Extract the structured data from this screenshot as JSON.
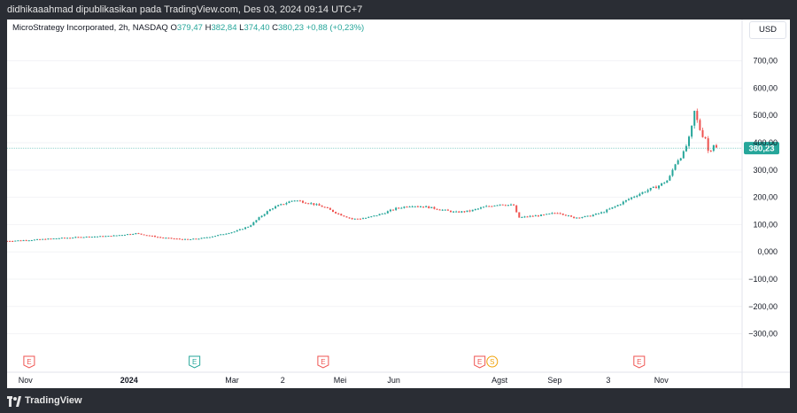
{
  "header": {
    "publish_line": "didhikaaahmad dipublikasikan pada TradingView.com, Des 03, 2024 09:14 UTC+7"
  },
  "legend": {
    "symbol": "MicroStrategy Incorporated, 2h, NASDAQ",
    "o_label": "O",
    "o_value": "379,47",
    "h_label": "H",
    "h_value": "382,84",
    "l_label": "L",
    "l_value": "374,40",
    "c_label": "C",
    "c_value": "380,23",
    "change": "+0,88 (+0,23%)"
  },
  "currency": "USD",
  "footer": {
    "brand": "TradingView"
  },
  "colors": {
    "up": "#26a69a",
    "down": "#ef5350",
    "earnings": "#ef5350",
    "earnings_future": "#26a69a",
    "dividend": "#f0a30a"
  },
  "chart_data": {
    "type": "candlestick",
    "ylim": [
      -350,
      780
    ],
    "y_ticks": [
      700,
      600,
      500,
      400,
      300,
      200,
      100,
      0,
      -100,
      -200,
      -300
    ],
    "y_tick_labels": [
      "700,00",
      "600,00",
      "500,00",
      "400,00",
      "300,00",
      "200,00",
      "100,00",
      "0,000",
      "−100,00",
      "−200,00",
      "−300,00"
    ],
    "x_labels": [
      "Nov",
      "2024",
      "Mar",
      "2",
      "Mei",
      "Jun",
      "Agst",
      "Sep",
      "3",
      "Nov"
    ],
    "last_price": 380.23,
    "last_price_label": "380,23",
    "series": {
      "x": [
        0,
        0.035,
        0.07,
        0.105,
        0.14,
        0.175,
        0.21,
        0.245,
        0.265,
        0.285,
        0.31,
        0.33,
        0.345,
        0.36,
        0.375,
        0.39,
        0.41,
        0.43,
        0.45,
        0.47,
        0.49,
        0.51,
        0.53,
        0.55,
        0.57,
        0.59,
        0.61,
        0.63,
        0.65,
        0.67,
        0.69,
        0.695,
        0.71,
        0.73,
        0.75,
        0.77,
        0.79,
        0.81,
        0.83,
        0.85,
        0.87,
        0.885,
        0.9,
        0.91,
        0.92,
        0.93,
        0.935,
        0.94,
        0.945,
        0.95,
        0.955,
        0.96,
        0.965
      ],
      "close": [
        40,
        44,
        50,
        55,
        58,
        68,
        52,
        45,
        50,
        60,
        75,
        95,
        130,
        160,
        175,
        190,
        180,
        165,
        140,
        120,
        125,
        140,
        160,
        170,
        165,
        155,
        145,
        150,
        165,
        175,
        170,
        125,
        130,
        135,
        145,
        125,
        130,
        145,
        170,
        200,
        225,
        240,
        265,
        330,
        360,
        430,
        515,
        470,
        430,
        420,
        355,
        400,
        380
      ]
    },
    "events": [
      {
        "x": 0.03,
        "label": "E",
        "kind": "earnings"
      },
      {
        "x": 0.255,
        "label": "E",
        "kind": "earnings-future"
      },
      {
        "x": 0.43,
        "label": "E",
        "kind": "earnings"
      },
      {
        "x": 0.643,
        "label": "E",
        "kind": "earnings"
      },
      {
        "x": 0.66,
        "label": "S",
        "kind": "dividend"
      },
      {
        "x": 0.86,
        "label": "E",
        "kind": "earnings"
      }
    ]
  }
}
